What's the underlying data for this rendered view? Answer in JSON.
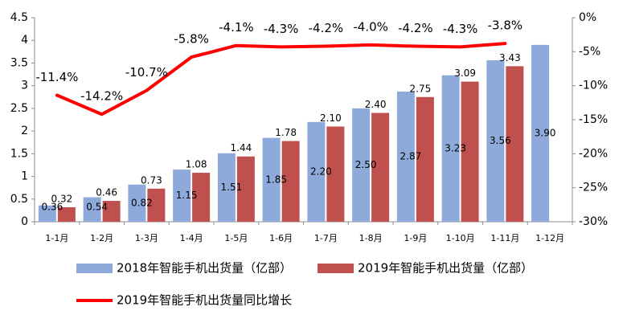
{
  "chart_data": {
    "type": "bar+line",
    "categories": [
      "1-1月",
      "1-2月",
      "1-3月",
      "1-4月",
      "1-5月",
      "1-6月",
      "1-7月",
      "1-8月",
      "1-9月",
      "1-10月",
      "1-11月",
      "1-12月"
    ],
    "series": [
      {
        "name": "2018年智能手机出货量（亿部）",
        "type": "bar",
        "axis": "left",
        "color": "#8EAADB",
        "values": [
          0.36,
          0.54,
          0.82,
          1.15,
          1.51,
          1.85,
          2.2,
          2.5,
          2.87,
          3.23,
          3.56,
          3.9
        ],
        "labels": [
          "0.36",
          "0.54",
          "0.82",
          "1.15",
          "1.51",
          "1.85",
          "2.20",
          "2.50",
          "2.87",
          "3.23",
          "3.56",
          "3.90"
        ]
      },
      {
        "name": "2019年智能手机出货量（亿部）",
        "type": "bar",
        "axis": "left",
        "color": "#C0504D",
        "values": [
          0.32,
          0.46,
          0.73,
          1.08,
          1.44,
          1.78,
          2.1,
          2.4,
          2.75,
          3.09,
          3.43,
          null
        ],
        "labels": [
          "0.32",
          "0.46",
          "0.73",
          "1.08",
          "1.44",
          "1.78",
          "2.10",
          "2.40",
          "2.75",
          "3.09",
          "3.43",
          ""
        ]
      },
      {
        "name": "2019年智能手机出货量同比增长",
        "type": "line",
        "axis": "right",
        "color": "#FF0000",
        "values": [
          -11.4,
          -14.2,
          -10.7,
          -5.8,
          -4.1,
          -4.3,
          -4.2,
          -4.0,
          -4.2,
          -4.3,
          -3.8,
          null
        ],
        "labels": [
          "-11.4%",
          "-14.2%",
          "-10.7%",
          "-5.8%",
          "-4.1%",
          "-4.3%",
          "-4.2%",
          "-4.0%",
          "-4.2%",
          "-4.3%",
          "-3.8%",
          ""
        ]
      }
    ],
    "y_left": {
      "range": [
        0,
        4.5
      ],
      "ticks": [
        0,
        0.5,
        1,
        1.5,
        2,
        2.5,
        3,
        3.5,
        4,
        4.5
      ],
      "tick_labels": [
        "0",
        "0.5",
        "1",
        "1.5",
        "2",
        "2.5",
        "3",
        "3.5",
        "4",
        "4.5"
      ]
    },
    "y_right": {
      "range": [
        -30,
        0
      ],
      "ticks": [
        0,
        -5,
        -10,
        -15,
        -20,
        -25,
        -30
      ],
      "tick_labels": [
        "0%",
        "-5%",
        "-10%",
        "-15%",
        "-20%",
        "-25%",
        "-30%"
      ]
    },
    "grid": false,
    "legend_position": "bottom"
  }
}
